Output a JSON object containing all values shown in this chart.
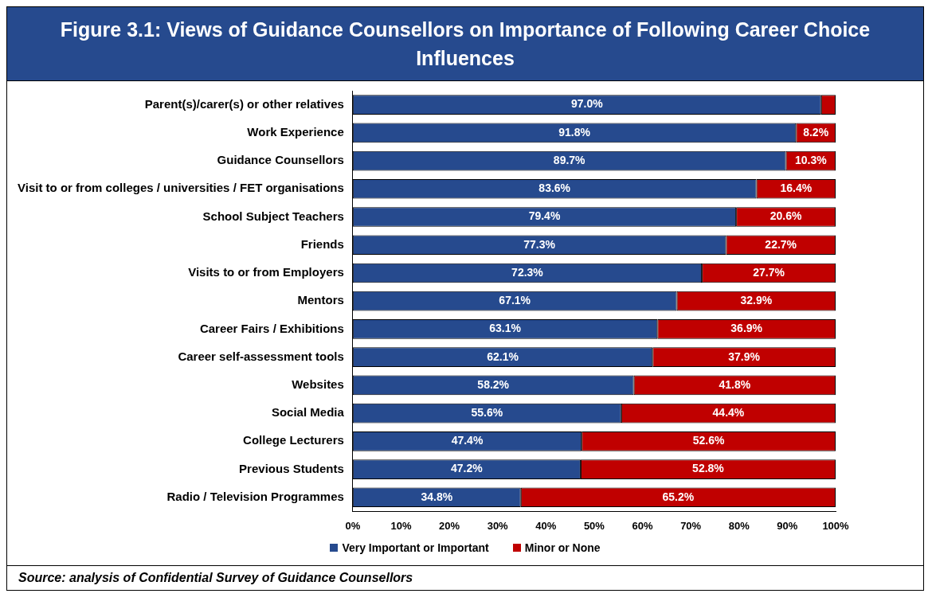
{
  "chart_data": {
    "type": "bar",
    "orientation": "horizontal",
    "stacked": true,
    "title": "Figure 3.1: Views of Guidance Counsellors on Importance of Following Career Choice Influences",
    "categories": [
      "Parent(s)/carer(s) or other relatives",
      "Work Experience",
      "Guidance Counsellors",
      "Visit to or from colleges / universities / FET organisations",
      "School Subject Teachers",
      "Friends",
      "Visits to or from Employers",
      "Mentors",
      "Career Fairs / Exhibitions",
      "Career self-assessment tools",
      "Websites",
      "Social Media",
      "College Lecturers",
      "Previous Students",
      "Radio / Television Programmes"
    ],
    "series": [
      {
        "name": "Very Important or Important",
        "color": "#264a8e",
        "values": [
          97.0,
          91.8,
          89.7,
          83.6,
          79.4,
          77.3,
          72.3,
          67.1,
          63.1,
          62.1,
          58.2,
          55.6,
          47.4,
          47.2,
          34.8
        ],
        "value_labels": [
          "97.0%",
          "91.8%",
          "89.7%",
          "83.6%",
          "79.4%",
          "77.3%",
          "72.3%",
          "67.1%",
          "63.1%",
          "62.1%",
          "58.2%",
          "55.6%",
          "47.4%",
          "47.2%",
          "34.8%"
        ]
      },
      {
        "name": "Minor or None",
        "color": "#c00000",
        "values": [
          3.0,
          8.2,
          10.3,
          16.4,
          20.6,
          22.7,
          27.7,
          32.9,
          36.9,
          37.9,
          41.8,
          44.4,
          52.6,
          52.8,
          65.2
        ],
        "value_labels": [
          null,
          "8.2%",
          "10.3%",
          "16.4%",
          "20.6%",
          "22.7%",
          "27.7%",
          "32.9%",
          "36.9%",
          "37.9%",
          "41.8%",
          "44.4%",
          "52.6%",
          "52.8%",
          "65.2%"
        ]
      }
    ],
    "xlim": [
      0,
      100
    ],
    "xticks": [
      {
        "value": 0,
        "label": "0%"
      },
      {
        "value": 10,
        "label": "10%"
      },
      {
        "value": 20,
        "label": "20%"
      },
      {
        "value": 30,
        "label": "30%"
      },
      {
        "value": 40,
        "label": "40%"
      },
      {
        "value": 50,
        "label": "50%"
      },
      {
        "value": 60,
        "label": "60%"
      },
      {
        "value": 70,
        "label": "70%"
      },
      {
        "value": 80,
        "label": "80%"
      },
      {
        "value": 90,
        "label": "90%"
      },
      {
        "value": 100,
        "label": "100%"
      }
    ],
    "grid": false,
    "legend": "bottom",
    "annotations": [
      "Source: analysis of Confidential Survey of Guidance Counsellors"
    ]
  }
}
